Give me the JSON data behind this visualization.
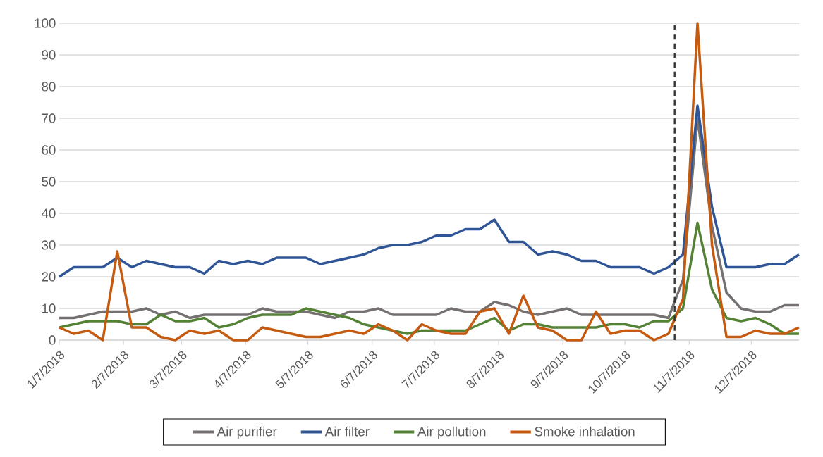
{
  "chart_data": {
    "type": "line",
    "x": [
      "2018-01-07",
      "2018-01-14",
      "2018-01-21",
      "2018-01-28",
      "2018-02-04",
      "2018-02-11",
      "2018-02-18",
      "2018-02-25",
      "2018-03-04",
      "2018-03-11",
      "2018-03-18",
      "2018-03-25",
      "2018-04-01",
      "2018-04-08",
      "2018-04-15",
      "2018-04-22",
      "2018-04-29",
      "2018-05-06",
      "2018-05-13",
      "2018-05-20",
      "2018-05-27",
      "2018-06-03",
      "2018-06-10",
      "2018-06-17",
      "2018-06-24",
      "2018-07-01",
      "2018-07-08",
      "2018-07-15",
      "2018-07-22",
      "2018-07-29",
      "2018-08-05",
      "2018-08-12",
      "2018-08-19",
      "2018-08-26",
      "2018-09-02",
      "2018-09-09",
      "2018-09-16",
      "2018-09-23",
      "2018-09-30",
      "2018-10-07",
      "2018-10-14",
      "2018-10-21",
      "2018-10-28",
      "2018-11-04",
      "2018-11-11",
      "2018-11-18",
      "2018-11-25",
      "2018-12-02",
      "2018-12-09",
      "2018-12-16",
      "2018-12-23",
      "2018-12-30"
    ],
    "series": [
      {
        "name": "Air purifier",
        "color": "#767171",
        "values": [
          7,
          7,
          8,
          9,
          9,
          9,
          10,
          8,
          9,
          7,
          8,
          8,
          8,
          8,
          10,
          9,
          9,
          9,
          8,
          7,
          9,
          9,
          10,
          8,
          8,
          8,
          8,
          10,
          9,
          9,
          12,
          11,
          9,
          8,
          9,
          10,
          8,
          8,
          8,
          8,
          8,
          8,
          7,
          19,
          70,
          36,
          15,
          10,
          9,
          9,
          11,
          11
        ]
      },
      {
        "name": "Air filter",
        "color": "#2f5597",
        "values": [
          20,
          23,
          23,
          23,
          26,
          23,
          25,
          24,
          23,
          23,
          21,
          25,
          24,
          25,
          24,
          26,
          26,
          26,
          24,
          25,
          26,
          27,
          29,
          30,
          30,
          31,
          33,
          33,
          35,
          35,
          38,
          31,
          31,
          27,
          28,
          27,
          25,
          25,
          23,
          23,
          23,
          21,
          23,
          27,
          74,
          42,
          23,
          23,
          23,
          24,
          24,
          27
        ]
      },
      {
        "name": "Air pollution",
        "color": "#548235",
        "values": [
          4,
          5,
          6,
          6,
          6,
          5,
          5,
          8,
          6,
          6,
          7,
          4,
          5,
          7,
          8,
          8,
          8,
          10,
          9,
          8,
          7,
          5,
          4,
          3,
          2,
          3,
          3,
          3,
          3,
          5,
          7,
          3,
          5,
          5,
          4,
          4,
          4,
          4,
          5,
          5,
          4,
          6,
          6,
          10,
          37,
          16,
          7,
          6,
          7,
          5,
          2,
          2
        ]
      },
      {
        "name": "Smoke inhalation",
        "color": "#c55a11",
        "values": [
          4,
          2,
          3,
          0,
          28,
          4,
          4,
          1,
          0,
          3,
          2,
          3,
          0,
          0,
          4,
          3,
          2,
          1,
          1,
          2,
          3,
          2,
          5,
          3,
          0,
          5,
          3,
          2,
          2,
          9,
          10,
          2,
          14,
          4,
          3,
          0,
          0,
          9,
          2,
          3,
          3,
          0,
          2,
          13,
          100,
          30,
          1,
          1,
          3,
          2,
          2,
          4
        ]
      }
    ],
    "xlim": [
      "2018-01-07",
      "2018-12-30"
    ],
    "xticks": [
      {
        "value": "2018-01-07",
        "label": "1/7/2018"
      },
      {
        "value": "2018-02-07",
        "label": "2/7/2018"
      },
      {
        "value": "2018-03-07",
        "label": "3/7/2018"
      },
      {
        "value": "2018-04-07",
        "label": "4/7/2018"
      },
      {
        "value": "2018-05-07",
        "label": "5/7/2018"
      },
      {
        "value": "2018-06-07",
        "label": "6/7/2018"
      },
      {
        "value": "2018-07-07",
        "label": "7/7/2018"
      },
      {
        "value": "2018-08-07",
        "label": "8/7/2018"
      },
      {
        "value": "2018-09-07",
        "label": "9/7/2018"
      },
      {
        "value": "2018-10-07",
        "label": "10/7/2018"
      },
      {
        "value": "2018-11-07",
        "label": "11/7/2018"
      },
      {
        "value": "2018-12-07",
        "label": "12/7/2018"
      }
    ],
    "ylim": [
      0,
      100
    ],
    "yticks": [
      0,
      10,
      20,
      30,
      40,
      50,
      60,
      70,
      80,
      90,
      100
    ],
    "grid": "y",
    "legend": "bottom",
    "ref_lines": [
      {
        "axis": "x",
        "value": "2018-10-31",
        "color": "#333333",
        "line_style": "dashed"
      }
    ]
  }
}
